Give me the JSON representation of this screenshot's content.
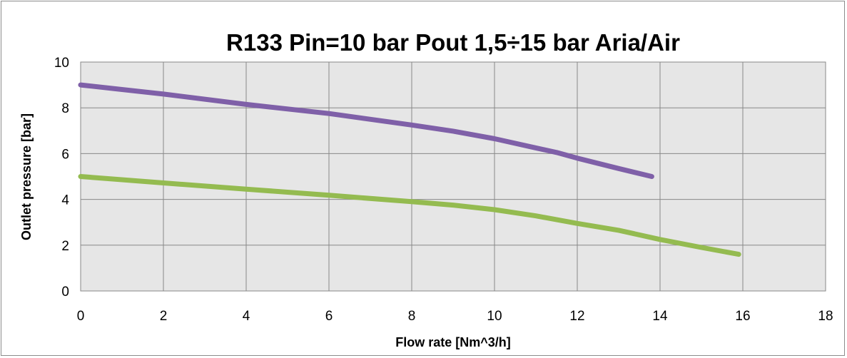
{
  "chart_data": {
    "type": "line",
    "title": "R133  Pin=10 bar  Pout 1,5÷15 bar   Aria/Air",
    "xlabel": "Flow rate [Nm^3/h]",
    "ylabel": "Outlet pressure [bar]",
    "xlim": [
      0,
      18
    ],
    "ylim": [
      0,
      10
    ],
    "xticks": [
      0,
      2,
      4,
      6,
      8,
      10,
      12,
      14,
      16,
      18
    ],
    "yticks": [
      0,
      2,
      4,
      6,
      8,
      10
    ],
    "grid": true,
    "plot_background": "#e6e6e6",
    "series": [
      {
        "color": "#7f60a8",
        "points": [
          [
            0,
            9.0
          ],
          [
            2,
            8.6
          ],
          [
            4,
            8.15
          ],
          [
            6,
            7.75
          ],
          [
            8,
            7.25
          ],
          [
            9,
            6.98
          ],
          [
            10,
            6.65
          ],
          [
            11,
            6.25
          ],
          [
            11.5,
            6.05
          ],
          [
            12,
            5.8
          ],
          [
            13,
            5.35
          ],
          [
            13.8,
            5.0
          ]
        ]
      },
      {
        "color": "#94bb50",
        "points": [
          [
            0,
            5.0
          ],
          [
            2,
            4.72
          ],
          [
            4,
            4.45
          ],
          [
            6,
            4.18
          ],
          [
            8,
            3.9
          ],
          [
            9,
            3.75
          ],
          [
            10,
            3.55
          ],
          [
            11,
            3.28
          ],
          [
            12,
            2.95
          ],
          [
            13,
            2.65
          ],
          [
            14,
            2.25
          ],
          [
            15,
            1.9
          ],
          [
            15.9,
            1.6
          ]
        ]
      }
    ]
  }
}
